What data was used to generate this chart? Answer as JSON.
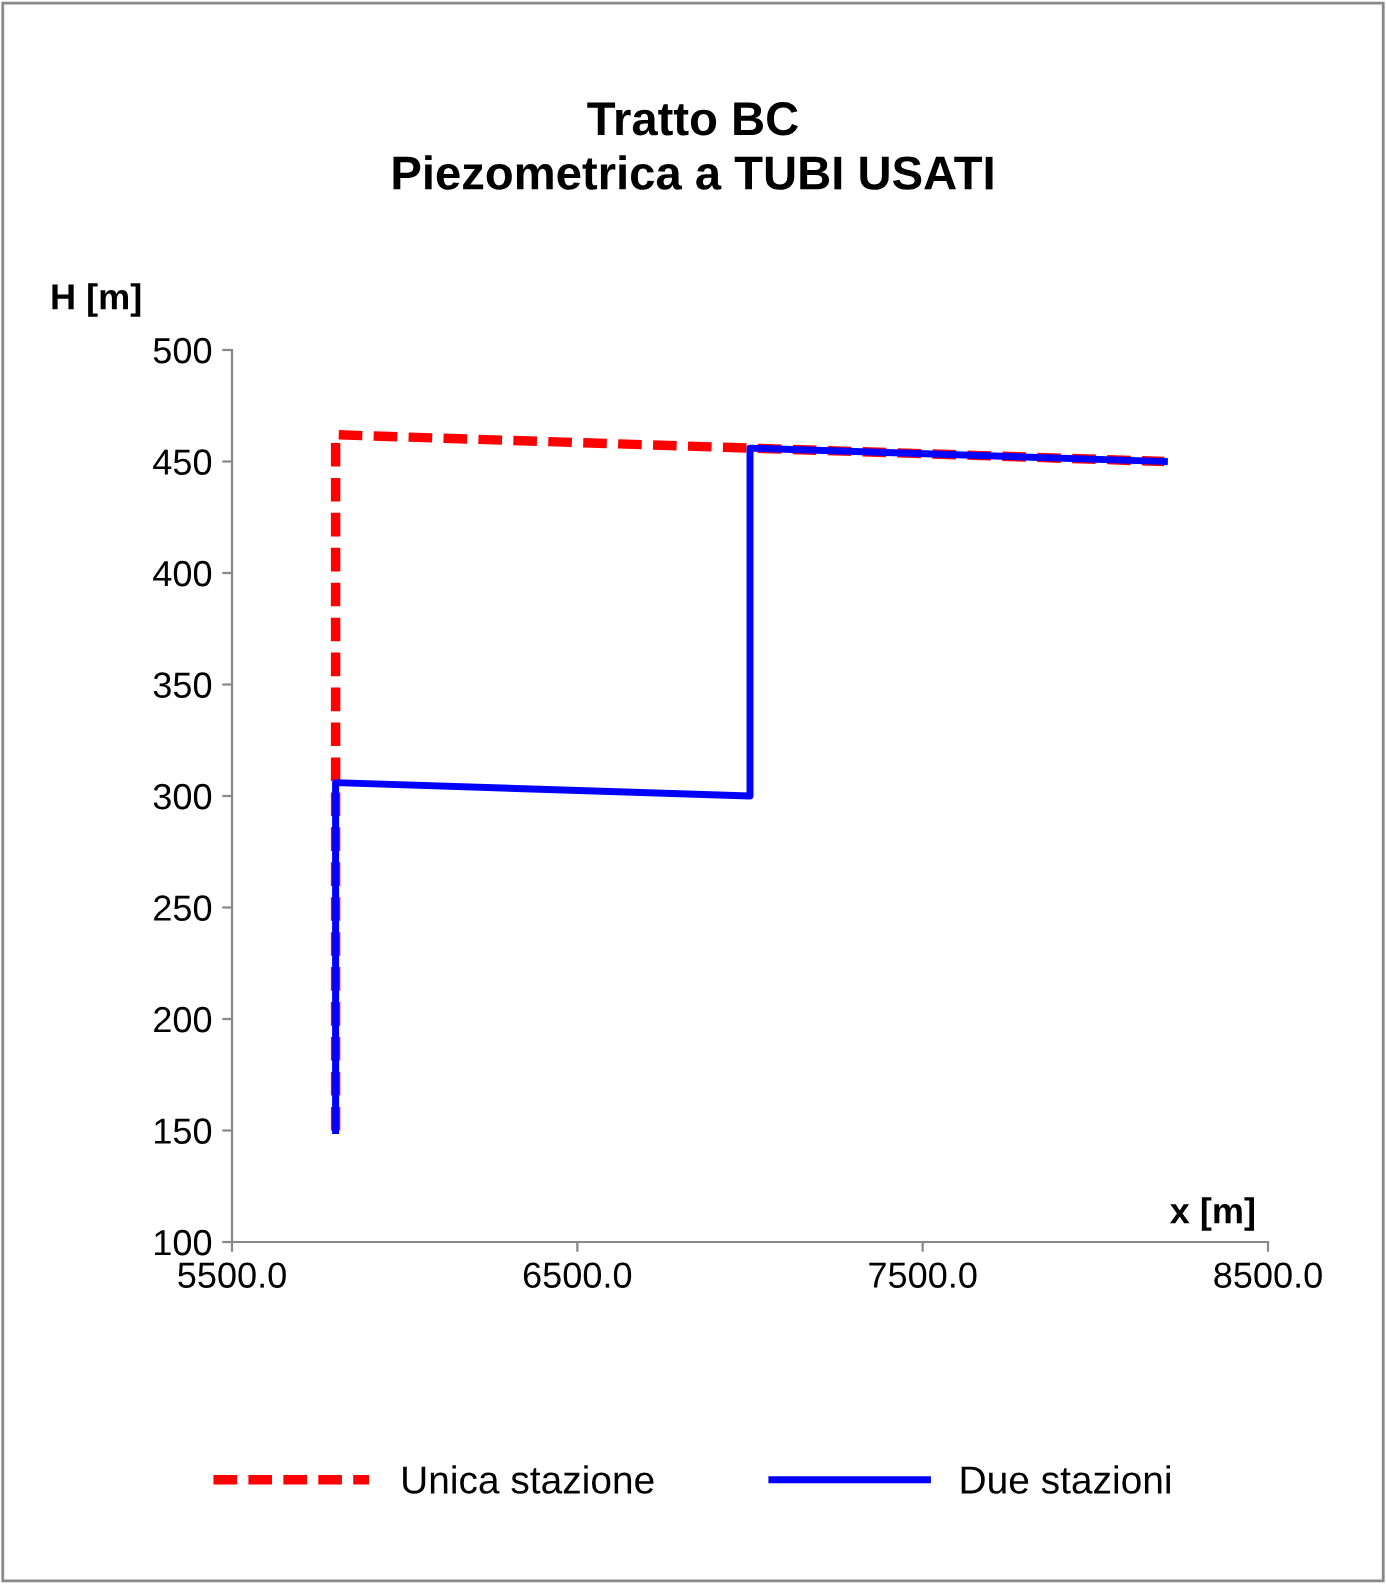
{
  "chart_data": {
    "type": "line",
    "title": "Tratto BC\nPiezometrica a TUBI USATI",
    "xlabel": "x [m]",
    "ylabel": "H [m]",
    "series": [
      {
        "name": "Unica stazione",
        "color": "#ff0000",
        "line_style": "dashed",
        "x": [
          5800,
          5800,
          7000,
          8200
        ],
        "values": [
          150,
          462,
          456,
          450
        ]
      },
      {
        "name": "Due stazioni",
        "color": "#0000ff",
        "line_style": "solid",
        "x": [
          5800,
          5800,
          7000,
          7000,
          8200
        ],
        "values": [
          150,
          306,
          300,
          456,
          450
        ]
      }
    ],
    "xlim": [
      5500,
      8500
    ],
    "xticks": [
      {
        "value": 5500,
        "label": "5500.0"
      },
      {
        "value": 6500,
        "label": "6500.0"
      },
      {
        "value": 7500,
        "label": "7500.0"
      },
      {
        "value": 8500,
        "label": "8500.0"
      }
    ],
    "ylim": [
      100,
      500
    ],
    "yticks": [
      100,
      150,
      200,
      250,
      300,
      350,
      400,
      450,
      500
    ],
    "grid": false,
    "legend": "bottom",
    "marker": "none"
  }
}
